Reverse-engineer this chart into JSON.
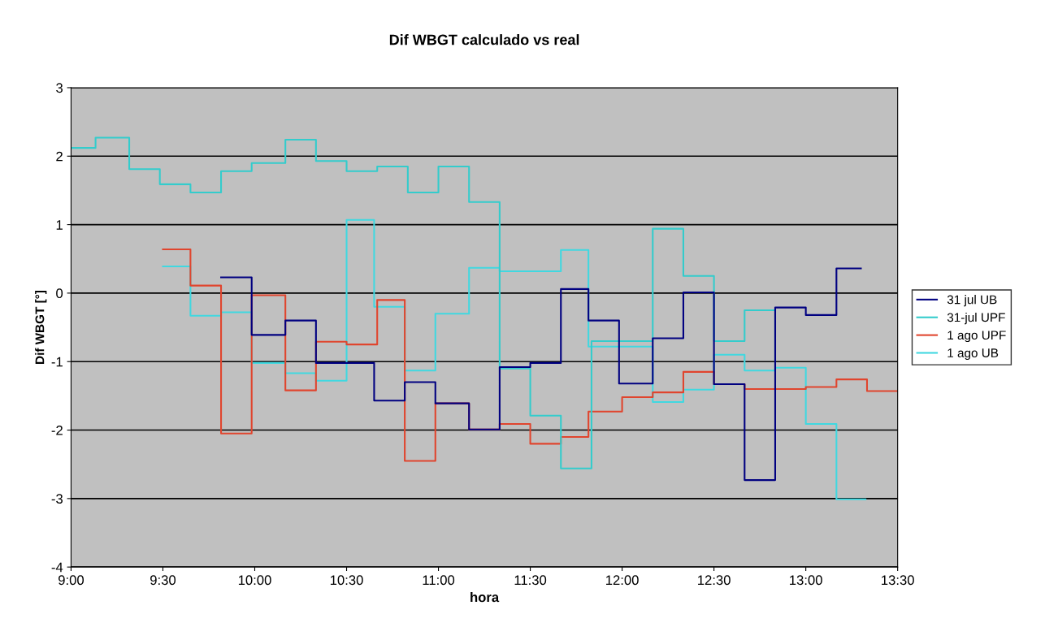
{
  "chart_data": {
    "type": "step",
    "title": "Dif WBGT calculado vs real",
    "xlabel": "hora",
    "ylabel": "Dif WBGT [°]",
    "xlim": [
      9,
      13.5
    ],
    "xticks": [
      {
        "value": 9,
        "label": "9:00"
      },
      {
        "value": 9.5,
        "label": "9:30"
      },
      {
        "value": 10,
        "label": "10:00"
      },
      {
        "value": 10.5,
        "label": "10:30"
      },
      {
        "value": 11,
        "label": "11:00"
      },
      {
        "value": 11.5,
        "label": "11:30"
      },
      {
        "value": 12,
        "label": "12:00"
      },
      {
        "value": 12.5,
        "label": "12:30"
      },
      {
        "value": 13,
        "label": "13:00"
      },
      {
        "value": 13.5,
        "label": "13:30"
      }
    ],
    "ylim": [
      -4,
      3
    ],
    "yticks": [
      -4,
      -3,
      -2,
      -1,
      0,
      1,
      2,
      3
    ],
    "grid": "y",
    "legend": "right",
    "marker": "none",
    "line_style": "solid",
    "series": [
      {
        "name": "31 jul UB",
        "color": "#000080",
        "x": [
          9.8167,
          9.9833,
          10.1667,
          10.3333,
          10.65,
          10.8167,
          10.9833,
          11.1667,
          11.3333,
          11.5,
          11.6667,
          11.8167,
          11.9833,
          12.1667,
          12.3333,
          12.5,
          12.6667,
          12.8333,
          13,
          13.1667,
          13.3
        ],
        "values": [
          0.23,
          -0.61,
          -0.4,
          -1.02,
          -1.57,
          -1.3,
          -1.61,
          -1.99,
          -1.08,
          -1.02,
          0.06,
          -0.4,
          -1.32,
          -0.66,
          0.01,
          -1.33,
          -2.73,
          -0.21,
          -0.32,
          0.36,
          0.36
        ]
      },
      {
        "name": "31-jul UPF",
        "color": "#33cccc",
        "x": [
          9,
          9.1333,
          9.3167,
          9.4833,
          9.65,
          9.8167,
          9.9833,
          10.1667,
          10.3333,
          10.5,
          10.6667,
          10.8333,
          11,
          11.1667,
          11.3333,
          11.5,
          11.6667,
          11.8333,
          12.1667,
          12.3333,
          12.5,
          12.6667,
          12.8333
        ],
        "values": [
          2.12,
          2.27,
          1.81,
          1.59,
          1.47,
          1.78,
          1.9,
          2.24,
          1.93,
          1.78,
          1.85,
          1.47,
          1.85,
          1.33,
          -1.1,
          -1.79,
          -2.56,
          -0.7,
          0.94,
          0.25,
          -0.7,
          -0.25,
          -1.1
        ]
      },
      {
        "name": "1 ago UPF",
        "color": "#e0452e",
        "x": [
          9.5,
          9.65,
          9.8167,
          9.9833,
          10.1667,
          10.3333,
          10.5,
          10.6667,
          10.8167,
          10.9833,
          11.1667,
          11.3333,
          11.5,
          11.6667,
          11.8167,
          12,
          12.1667,
          12.3333,
          12.5,
          12.6667,
          13,
          13.1667,
          13.3333,
          13.5
        ],
        "values": [
          0.64,
          0.11,
          -2.05,
          -0.03,
          -1.42,
          -0.71,
          -0.75,
          -0.1,
          -2.45,
          -1.61,
          -1.99,
          -1.91,
          -2.2,
          -2.1,
          -1.73,
          -1.52,
          -1.45,
          -1.15,
          -1.33,
          -1.4,
          -1.37,
          -1.26,
          -1.43,
          -1.43
        ]
      },
      {
        "name": "1 ago UB",
        "color": "#40d8e0",
        "x": [
          9.5,
          9.65,
          9.8167,
          9.9833,
          10.1667,
          10.3333,
          10.5,
          10.65,
          10.8167,
          10.9833,
          11.1667,
          11.3333,
          11.6667,
          11.8167,
          12.1667,
          12.3333,
          12.5,
          12.6667,
          12.8333,
          13,
          13.1667,
          13.325
        ],
        "values": [
          0.39,
          -0.33,
          -0.28,
          -1.02,
          -1.17,
          -1.28,
          1.07,
          -0.2,
          -1.13,
          -0.3,
          0.37,
          0.32,
          0.63,
          -0.78,
          -1.59,
          -1.41,
          -0.9,
          -1.13,
          -1.09,
          -1.91,
          -3.01,
          -3.01
        ]
      }
    ]
  }
}
